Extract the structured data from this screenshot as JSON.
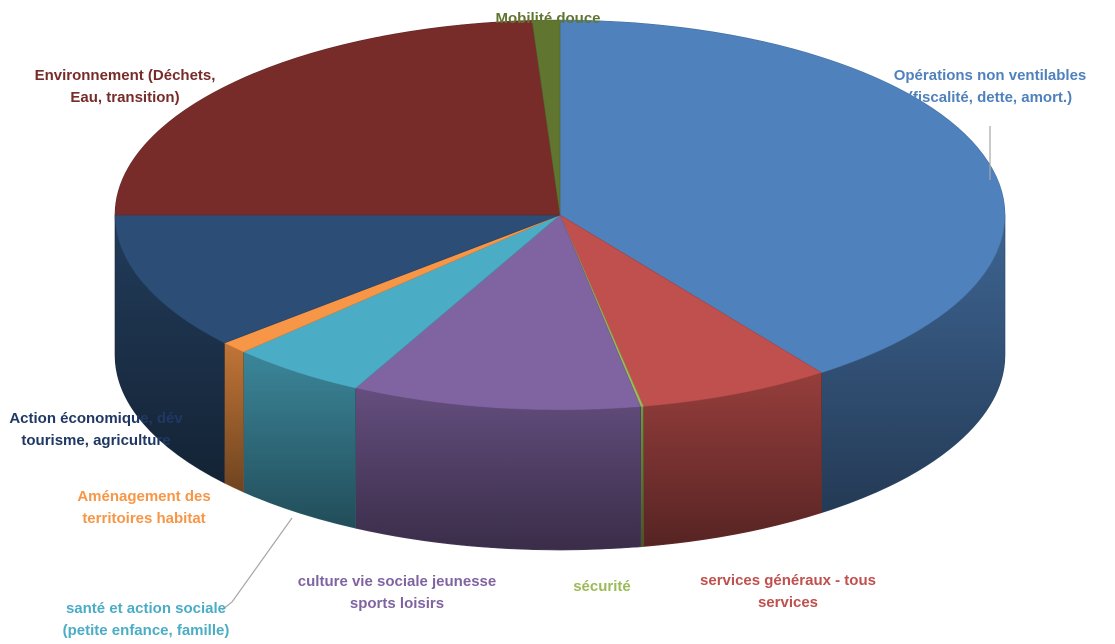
{
  "chart_data": {
    "type": "pie",
    "title": "",
    "style": "3d-exploded-perspective",
    "slices": [
      {
        "label": "Opérations non ventilables (fiscalité, dette, amort.)",
        "value": 40.0,
        "color": "#4F81BD"
      },
      {
        "label": "services généraux - tous services",
        "value": 7.0,
        "color": "#C0504D"
      },
      {
        "label": "sécurité",
        "value": 0.1,
        "color": "#9BBB59"
      },
      {
        "label": "culture vie sociale jeunesse sports loisirs",
        "value": 10.5,
        "color": "#8064A2"
      },
      {
        "label": "santé et action sociale (petite enfance, famille)",
        "value": 5.0,
        "color": "#4BACC6"
      },
      {
        "label": "Aménagement des territoires habitat",
        "value": 1.0,
        "color": "#F79646"
      },
      {
        "label": "Action économique, dév tourisme, agriculture",
        "value": 11.4,
        "color": "#2C4D75"
      },
      {
        "label": "Environnement (Déchets, Eau, transition)",
        "value": 24.0,
        "color": "#772C2A"
      },
      {
        "label": "Mobilité douce",
        "value": 1.0,
        "color": "#5F7530"
      }
    ]
  }
}
